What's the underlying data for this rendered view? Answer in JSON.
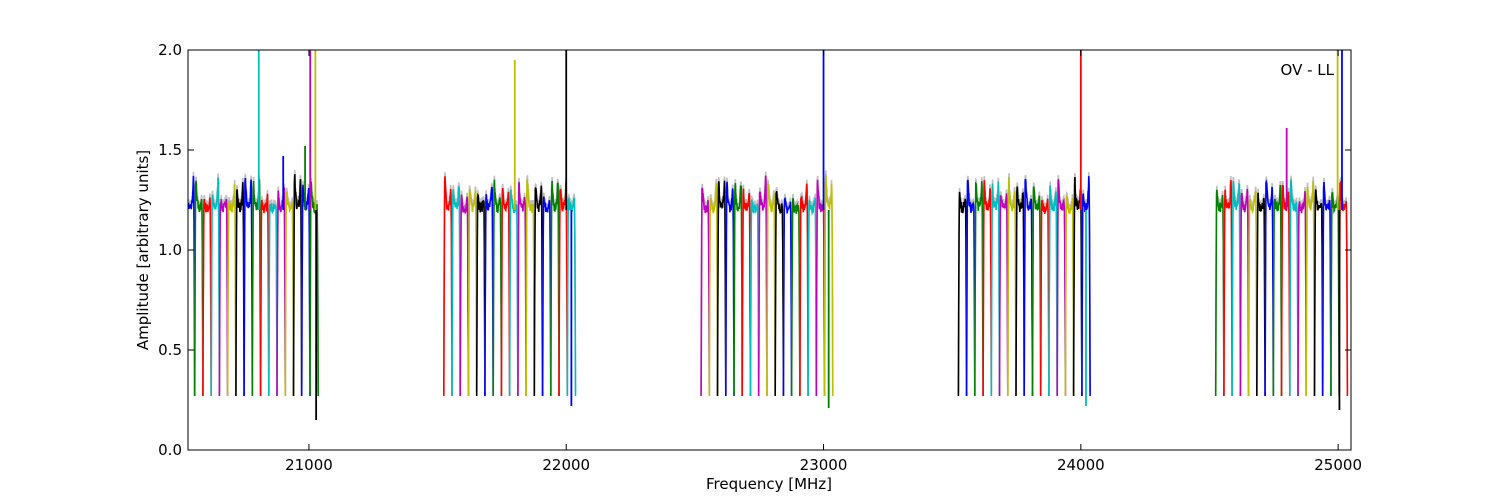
{
  "chart_data": {
    "type": "line",
    "annotation": "OV - LL",
    "xlabel": "Frequency [MHz]",
    "ylabel": "Amplitude [arbitrary units]",
    "xlim": [
      20530,
      25050
    ],
    "ylim": [
      0.0,
      2.0
    ],
    "xticks": [
      21000,
      22000,
      23000,
      24000,
      25000
    ],
    "xtick_labels": [
      "21000",
      "22000",
      "23000",
      "24000",
      "25000"
    ],
    "yticks": [
      0.0,
      0.5,
      1.0,
      1.5,
      2.0
    ],
    "ytick_labels": [
      "0.0",
      "0.5",
      "1.0",
      "1.5",
      "2.0"
    ],
    "grid": false,
    "series_colors": [
      "#0000ff",
      "#008000",
      "#ff0000",
      "#00bfbf",
      "#bf00bf",
      "#bfbf00",
      "#000000"
    ],
    "shadow_color": "#bfbfbf",
    "channel_width_mhz": 32,
    "channel_edge_level": 0.27,
    "channel_plateau_level": 1.2,
    "bands": [
      {
        "center": 20780,
        "channels": 16,
        "first_color": 0,
        "spikes": [
          {
            "x": 20805,
            "y": 2.0
          },
          {
            "x": 21005,
            "y": 2.0
          },
          {
            "x": 21025,
            "y": 2.0
          },
          {
            "x": 21028,
            "y": 0.15
          },
          {
            "x": 20900,
            "y": 1.47
          },
          {
            "x": 20985,
            "y": 1.52
          }
        ]
      },
      {
        "center": 21780,
        "channels": 16,
        "first_color": 2,
        "spikes": [
          {
            "x": 21800,
            "y": 1.95
          },
          {
            "x": 22000,
            "y": 2.0
          },
          {
            "x": 22020,
            "y": 0.22
          }
        ]
      },
      {
        "center": 22780,
        "channels": 16,
        "first_color": 4,
        "spikes": [
          {
            "x": 23000,
            "y": 2.0
          },
          {
            "x": 23020,
            "y": 0.21
          }
        ]
      },
      {
        "center": 23780,
        "channels": 16,
        "first_color": 6,
        "spikes": [
          {
            "x": 24000,
            "y": 2.0
          },
          {
            "x": 24020,
            "y": 0.22
          }
        ]
      },
      {
        "center": 24780,
        "channels": 16,
        "first_color": 1,
        "spikes": [
          {
            "x": 24800,
            "y": 1.61
          },
          {
            "x": 24998,
            "y": 2.0
          },
          {
            "x": 25005,
            "y": 0.2
          },
          {
            "x": 25015,
            "y": 2.0
          }
        ]
      }
    ]
  }
}
